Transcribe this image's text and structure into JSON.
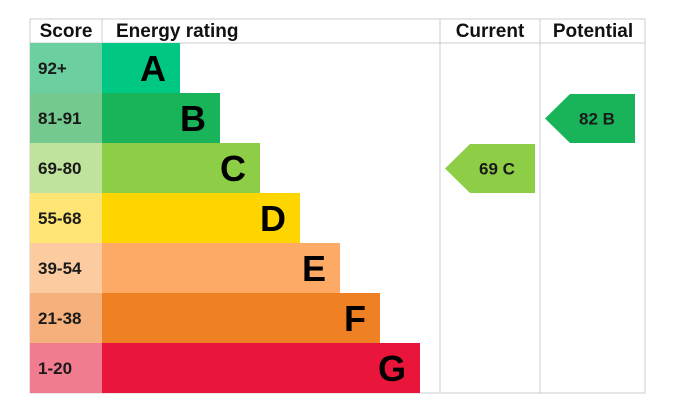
{
  "chart_data": {
    "type": "bar",
    "headers": {
      "score": "Score",
      "rating": "Energy rating",
      "current": "Current",
      "potential": "Potential"
    },
    "bands": [
      {
        "band": "A",
        "range": "92+",
        "color": "#00c781",
        "score_color": "#6ccfa0"
      },
      {
        "band": "B",
        "range": "81-91",
        "color": "#19b459",
        "score_color": "#74ca8e"
      },
      {
        "band": "C",
        "range": "69-80",
        "color": "#8dce46",
        "score_color": "#bfe29c"
      },
      {
        "band": "D",
        "range": "55-68",
        "color": "#ffd500",
        "score_color": "#ffe574"
      },
      {
        "band": "E",
        "range": "39-54",
        "color": "#fcaa65",
        "score_color": "#fdcba0"
      },
      {
        "band": "F",
        "range": "21-38",
        "color": "#ef8023",
        "score_color": "#f5b07b"
      },
      {
        "band": "G",
        "range": "1-20",
        "color": "#e9153b",
        "score_color": "#f17b8f"
      }
    ],
    "current": {
      "value": 69,
      "band": "C",
      "label": "69 C",
      "color": "#8dce46"
    },
    "potential": {
      "value": 82,
      "band": "B",
      "label": "82 B",
      "color": "#19b459"
    }
  }
}
